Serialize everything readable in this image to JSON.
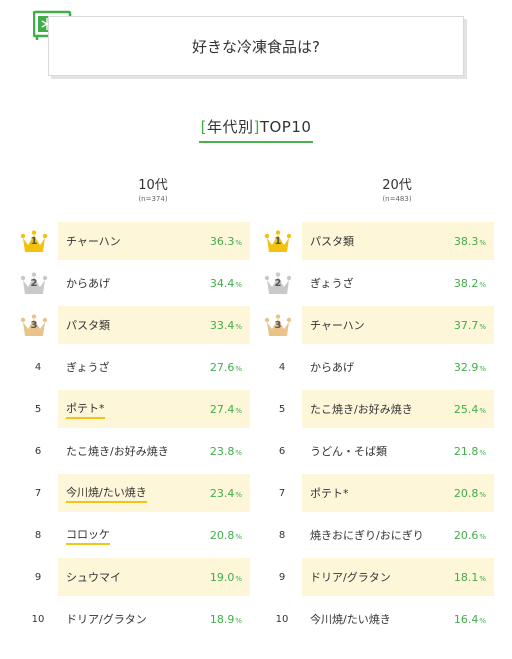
{
  "header": {
    "title": "好きな冷凍食品は?"
  },
  "section": {
    "bracket_open": "[",
    "label": "年代別",
    "bracket_close": "]",
    "suffix": "TOP10"
  },
  "colors": {
    "accent_green": "#3fae49",
    "highlight": "#fdf6d9",
    "underline": "#f0c419",
    "gold": "#f2c20f",
    "silver": "#c9c9c9",
    "bronze": "#e8c48a"
  },
  "unit": "%",
  "columns": [
    {
      "title": "10代",
      "n": "(n=374)",
      "rows": [
        {
          "rank": "1",
          "item": "チャーハン",
          "value": "36.3",
          "crown": "gold",
          "highlight": true,
          "underline": false
        },
        {
          "rank": "2",
          "item": "からあげ",
          "value": "34.4",
          "crown": "silver",
          "highlight": false,
          "underline": false
        },
        {
          "rank": "3",
          "item": "パスタ類",
          "value": "33.4",
          "crown": "bronze",
          "highlight": true,
          "underline": false
        },
        {
          "rank": "4",
          "item": "ぎょうざ",
          "value": "27.6",
          "crown": null,
          "highlight": false,
          "underline": false
        },
        {
          "rank": "5",
          "item": "ポテト*",
          "value": "27.4",
          "crown": null,
          "highlight": true,
          "underline": true
        },
        {
          "rank": "6",
          "item": "たこ焼き/お好み焼き",
          "value": "23.8",
          "crown": null,
          "highlight": false,
          "underline": false
        },
        {
          "rank": "7",
          "item": "今川焼/たい焼き",
          "value": "23.4",
          "crown": null,
          "highlight": true,
          "underline": true
        },
        {
          "rank": "8",
          "item": "コロッケ",
          "value": "20.8",
          "crown": null,
          "highlight": false,
          "underline": true
        },
        {
          "rank": "9",
          "item": "シュウマイ",
          "value": "19.0",
          "crown": null,
          "highlight": true,
          "underline": false
        },
        {
          "rank": "10",
          "item": "ドリア/グラタン",
          "value": "18.9",
          "crown": null,
          "highlight": false,
          "underline": false
        }
      ]
    },
    {
      "title": "20代",
      "n": "(n=483)",
      "rows": [
        {
          "rank": "1",
          "item": "パスタ類",
          "value": "38.3",
          "crown": "gold",
          "highlight": true,
          "underline": false
        },
        {
          "rank": "2",
          "item": "ぎょうざ",
          "value": "38.2",
          "crown": "silver",
          "highlight": false,
          "underline": false
        },
        {
          "rank": "3",
          "item": "チャーハン",
          "value": "37.7",
          "crown": "bronze",
          "highlight": true,
          "underline": false
        },
        {
          "rank": "4",
          "item": "からあげ",
          "value": "32.9",
          "crown": null,
          "highlight": false,
          "underline": false
        },
        {
          "rank": "5",
          "item": "たこ焼き/お好み焼き",
          "value": "25.4",
          "crown": null,
          "highlight": true,
          "underline": false
        },
        {
          "rank": "6",
          "item": "うどん・そば類",
          "value": "21.8",
          "crown": null,
          "highlight": false,
          "underline": false
        },
        {
          "rank": "7",
          "item": "ポテト*",
          "value": "20.8",
          "crown": null,
          "highlight": true,
          "underline": false
        },
        {
          "rank": "8",
          "item": "焼きおにぎり/おにぎり",
          "value": "20.6",
          "crown": null,
          "highlight": false,
          "underline": false
        },
        {
          "rank": "9",
          "item": "ドリア/グラタン",
          "value": "18.1",
          "crown": null,
          "highlight": true,
          "underline": false
        },
        {
          "rank": "10",
          "item": "今川焼/たい焼き",
          "value": "16.4",
          "crown": null,
          "highlight": false,
          "underline": false
        }
      ]
    }
  ]
}
